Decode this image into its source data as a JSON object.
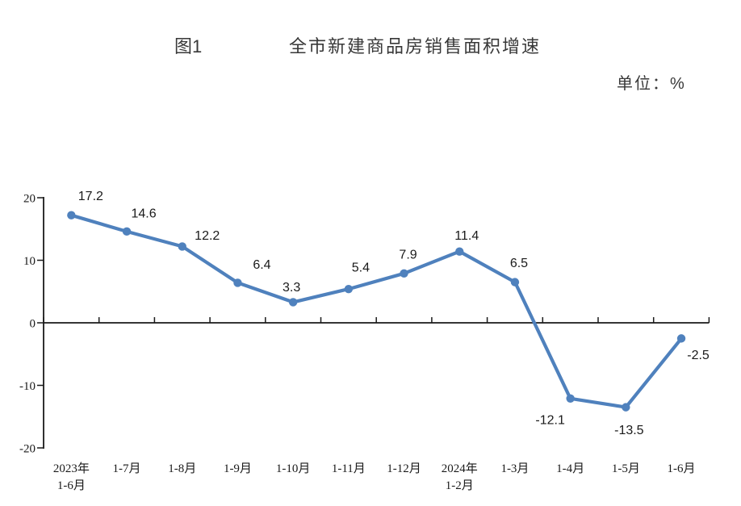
{
  "header": {
    "figure_label": "图1",
    "title": "全市新建商品房销售面积增速",
    "unit_label": "单位：%"
  },
  "chart_data": {
    "type": "line",
    "figure_number": "图1",
    "title": "全市新建商品房销售面积增速",
    "unit": "%",
    "unit_label": "单位：%",
    "categories": [
      "2023年\n1-6月",
      "1-7月",
      "1-8月",
      "1-9月",
      "1-10月",
      "1-11月",
      "1-12月",
      "2024年\n1-2月",
      "1-3月",
      "1-4月",
      "1-5月",
      "1-6月"
    ],
    "values": [
      17.2,
      14.6,
      12.2,
      6.4,
      3.3,
      5.4,
      7.9,
      11.4,
      6.5,
      -12.1,
      -13.5,
      -2.5
    ],
    "ylim": [
      -20,
      20
    ],
    "yticks": [
      20,
      10,
      0,
      -10,
      -20
    ],
    "grid": false,
    "legend": "none",
    "data_labels": true,
    "line_color": "#4F81BD",
    "marker": "circle",
    "axis_color": "#1a1a1a",
    "text_color": "#1a1a1a"
  }
}
